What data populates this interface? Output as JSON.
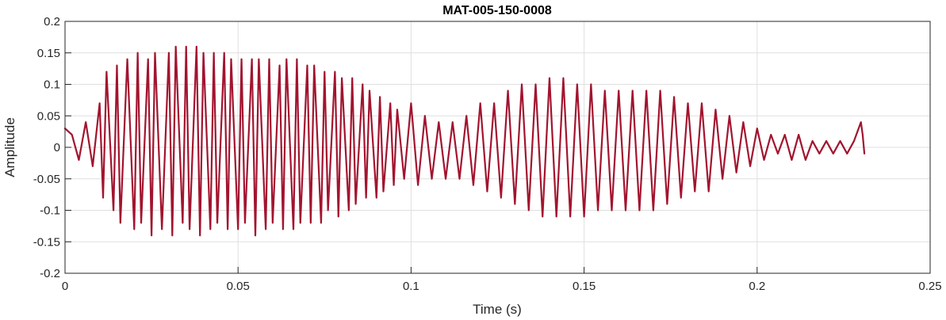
{
  "chart_data": {
    "type": "line",
    "title": "MAT-005-150-0008",
    "xlabel": "Time (s)",
    "ylabel": "Amplitude",
    "xlim": [
      0,
      0.25
    ],
    "ylim": [
      -0.2,
      0.2
    ],
    "xticks": [
      0,
      0.05,
      0.1,
      0.15,
      0.2,
      0.25
    ],
    "xtick_labels": [
      "0",
      "0.05",
      "0.1",
      "0.15",
      "0.2",
      "0.25"
    ],
    "yticks": [
      -0.2,
      -0.15,
      -0.1,
      -0.05,
      0,
      0.05,
      0.1,
      0.15,
      0.2
    ],
    "ytick_labels": [
      "-0.2",
      "-0.15",
      "-0.1",
      "-0.05",
      "0",
      "0.05",
      "0.1",
      "0.15",
      "0.2"
    ],
    "grid": true,
    "series": [
      {
        "color": "#a2142f",
        "x": [
          0,
          0.002,
          0.004,
          0.006,
          0.008,
          0.01,
          0.011,
          0.012,
          0.014,
          0.015,
          0.016,
          0.018,
          0.02,
          0.021,
          0.022,
          0.024,
          0.025,
          0.026,
          0.028,
          0.03,
          0.031,
          0.032,
          0.034,
          0.035,
          0.036,
          0.038,
          0.039,
          0.04,
          0.042,
          0.043,
          0.044,
          0.046,
          0.047,
          0.048,
          0.05,
          0.051,
          0.052,
          0.054,
          0.055,
          0.056,
          0.058,
          0.059,
          0.06,
          0.062,
          0.063,
          0.064,
          0.066,
          0.067,
          0.068,
          0.07,
          0.071,
          0.072,
          0.074,
          0.075,
          0.076,
          0.078,
          0.079,
          0.08,
          0.082,
          0.083,
          0.084,
          0.086,
          0.087,
          0.088,
          0.09,
          0.091,
          0.092,
          0.094,
          0.095,
          0.096,
          0.098,
          0.1,
          0.102,
          0.104,
          0.106,
          0.108,
          0.11,
          0.112,
          0.114,
          0.116,
          0.118,
          0.12,
          0.122,
          0.124,
          0.126,
          0.128,
          0.13,
          0.132,
          0.134,
          0.136,
          0.138,
          0.14,
          0.142,
          0.144,
          0.146,
          0.148,
          0.15,
          0.152,
          0.154,
          0.156,
          0.158,
          0.16,
          0.162,
          0.164,
          0.166,
          0.168,
          0.17,
          0.172,
          0.174,
          0.176,
          0.178,
          0.18,
          0.182,
          0.184,
          0.186,
          0.188,
          0.19,
          0.192,
          0.194,
          0.196,
          0.198,
          0.2,
          0.202,
          0.204,
          0.206,
          0.208,
          0.21,
          0.212,
          0.214,
          0.216,
          0.218,
          0.22,
          0.222,
          0.224,
          0.226,
          0.228,
          0.23,
          0.2305,
          0.231
        ],
        "y": [
          0.03,
          0.02,
          -0.02,
          0.04,
          -0.03,
          0.07,
          -0.08,
          0.12,
          -0.1,
          0.13,
          -0.12,
          0.14,
          -0.13,
          0.15,
          -0.12,
          0.14,
          -0.14,
          0.15,
          -0.13,
          0.15,
          -0.14,
          0.16,
          -0.12,
          0.16,
          -0.13,
          0.16,
          -0.14,
          0.15,
          -0.13,
          0.15,
          -0.12,
          0.15,
          -0.13,
          0.14,
          -0.13,
          0.14,
          -0.12,
          0.14,
          -0.14,
          0.14,
          -0.13,
          0.14,
          -0.12,
          0.13,
          -0.13,
          0.14,
          -0.13,
          0.14,
          -0.12,
          0.13,
          -0.12,
          0.13,
          -0.12,
          0.12,
          -0.1,
          0.12,
          -0.11,
          0.11,
          -0.1,
          0.11,
          -0.09,
          0.1,
          -0.08,
          0.09,
          -0.08,
          0.08,
          -0.07,
          0.07,
          -0.06,
          0.06,
          -0.05,
          0.07,
          -0.06,
          0.05,
          -0.05,
          0.04,
          -0.05,
          0.04,
          -0.05,
          0.05,
          -0.06,
          0.07,
          -0.07,
          0.07,
          -0.08,
          0.09,
          -0.09,
          0.1,
          -0.1,
          0.1,
          -0.11,
          0.11,
          -0.11,
          0.11,
          -0.11,
          0.1,
          -0.11,
          0.1,
          -0.1,
          0.09,
          -0.1,
          0.09,
          -0.1,
          0.09,
          -0.1,
          0.09,
          -0.1,
          0.09,
          -0.09,
          0.08,
          -0.08,
          0.07,
          -0.07,
          0.07,
          -0.07,
          0.06,
          -0.05,
          0.05,
          -0.04,
          0.04,
          -0.03,
          0.03,
          -0.02,
          0.02,
          -0.01,
          0.02,
          -0.02,
          0.02,
          -0.02,
          0.01,
          -0.01,
          0.01,
          -0.01,
          0.01,
          -0.01,
          0.01,
          0.04,
          0.02,
          -0.01
        ]
      }
    ]
  }
}
